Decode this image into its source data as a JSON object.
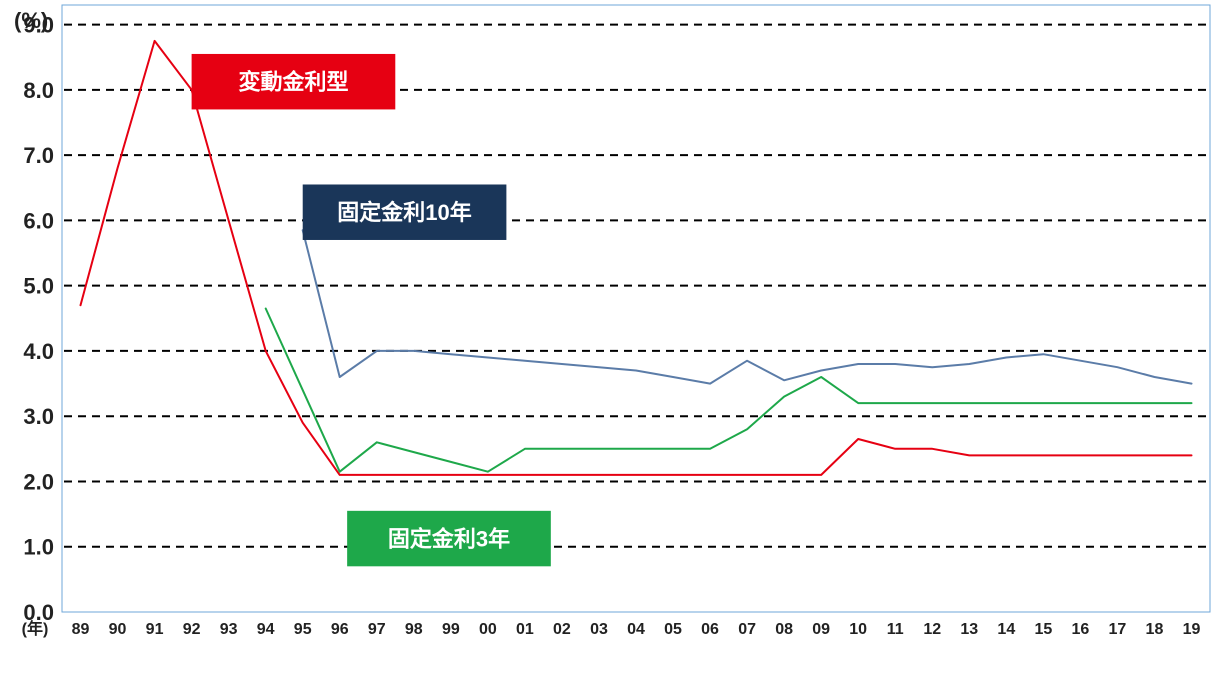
{
  "chart": {
    "type": "line",
    "y_unit_label": "(%)",
    "x_unit_label": "(年)",
    "background_color": "#ffffff",
    "plot_border_color": "#6fa7d9",
    "grid_color": "#000000",
    "grid_dash": "8,6",
    "grid_linewidth": 2,
    "years": [
      "89",
      "90",
      "91",
      "92",
      "93",
      "94",
      "95",
      "96",
      "97",
      "98",
      "99",
      "00",
      "01",
      "02",
      "03",
      "04",
      "05",
      "06",
      "07",
      "08",
      "09",
      "10",
      "11",
      "12",
      "13",
      "14",
      "15",
      "16",
      "17",
      "18",
      "19"
    ],
    "ylim": [
      0.0,
      9.3
    ],
    "yticks": [
      0.0,
      1.0,
      2.0,
      3.0,
      4.0,
      5.0,
      6.0,
      7.0,
      8.0,
      9.0
    ],
    "ytick_labels": [
      "0.0",
      "1.0",
      "2.0",
      "3.0",
      "4.0",
      "5.0",
      "6.0",
      "7.0",
      "8.0",
      "9.0"
    ],
    "label_fontsize_y": 22,
    "label_fontsize_x": 16,
    "line_width": 2,
    "series": [
      {
        "name": "変動金利型",
        "color": "#e60012",
        "legend_bg": "#e60012",
        "legend_text": "#ffffff",
        "legend_x_year": "92",
        "legend_y_value": 8.55,
        "legend_w_years": 5.5,
        "legend_h_value": 0.85,
        "data": {
          "89": 4.7,
          "90": 6.8,
          "91": 8.75,
          "92": 8.0,
          "93": 6.0,
          "94": 4.0,
          "95": 2.9,
          "96": 2.1,
          "97": 2.1,
          "98": 2.1,
          "99": 2.1,
          "00": 2.1,
          "01": 2.1,
          "02": 2.1,
          "03": 2.1,
          "04": 2.1,
          "05": 2.1,
          "06": 2.1,
          "07": 2.1,
          "08": 2.1,
          "09": 2.1,
          "10": 2.65,
          "11": 2.5,
          "12": 2.5,
          "13": 2.4,
          "14": 2.4,
          "15": 2.4,
          "16": 2.4,
          "17": 2.4,
          "18": 2.4,
          "19": 2.4
        }
      },
      {
        "name": "固定金利10年",
        "color": "#5b7ca8",
        "legend_bg": "#1a3659",
        "legend_text": "#ffffff",
        "legend_x_year": "95",
        "legend_y_value": 6.55,
        "legend_w_years": 5.5,
        "legend_h_value": 0.85,
        "data": {
          "95": 5.85,
          "96": 3.6,
          "97": 4.0,
          "98": 4.0,
          "99": 3.95,
          "00": 3.9,
          "01": 3.85,
          "02": 3.8,
          "03": 3.75,
          "04": 3.7,
          "05": 3.6,
          "06": 3.5,
          "07": 3.85,
          "08": 3.55,
          "09": 3.7,
          "10": 3.8,
          "11": 3.8,
          "12": 3.75,
          "13": 3.8,
          "14": 3.9,
          "15": 3.95,
          "16": 3.85,
          "17": 3.75,
          "18": 3.6,
          "19": 3.5
        }
      },
      {
        "name": "固定金利3年",
        "color": "#1ea84a",
        "legend_bg": "#1ea84a",
        "legend_text": "#ffffff",
        "legend_x_year": "96.2",
        "legend_y_value": 1.55,
        "legend_w_years": 5.5,
        "legend_h_value": 0.85,
        "data": {
          "94": 4.65,
          "95": 3.4,
          "96": 2.15,
          "97": 2.6,
          "98": 2.45,
          "99": 2.3,
          "00": 2.15,
          "01": 2.5,
          "02": 2.5,
          "03": 2.5,
          "04": 2.5,
          "05": 2.5,
          "06": 2.5,
          "07": 2.8,
          "08": 3.3,
          "09": 3.6,
          "10": 3.2,
          "11": 3.2,
          "12": 3.2,
          "13": 3.2,
          "14": 3.2,
          "15": 3.2,
          "16": 3.2,
          "17": 3.2,
          "18": 3.2,
          "19": 3.2
        }
      }
    ]
  }
}
